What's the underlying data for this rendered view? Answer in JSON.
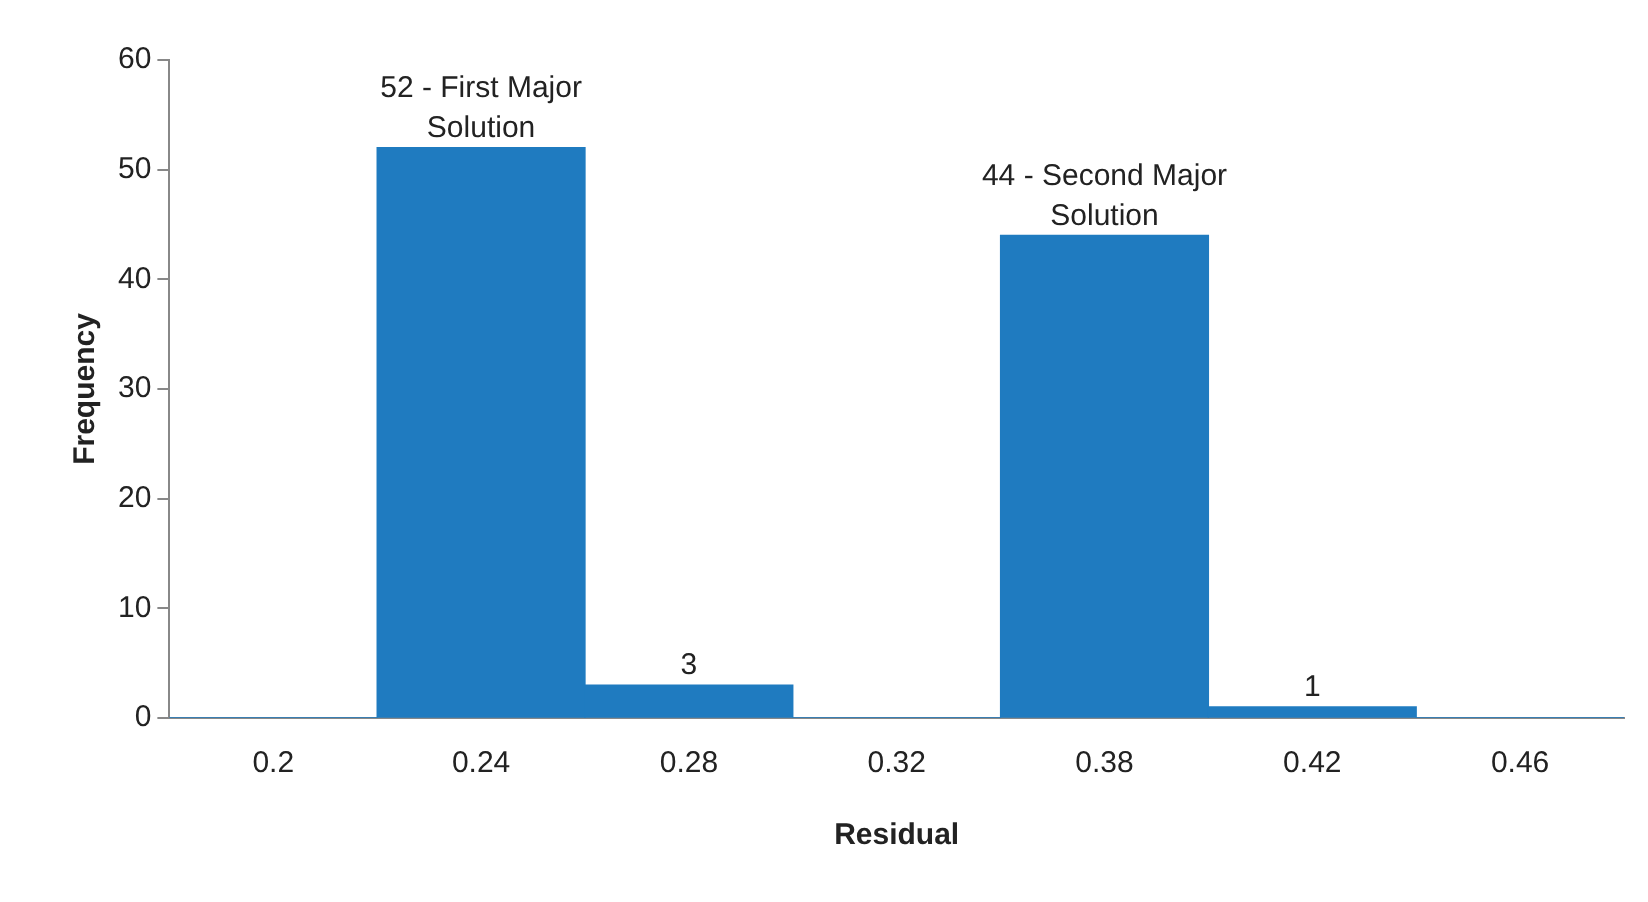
{
  "chart_data": {
    "type": "bar",
    "xlabel": "Residual",
    "ylabel": "Frequency",
    "categories": [
      "0.2",
      "0.24",
      "0.28",
      "0.32",
      "0.38",
      "0.42",
      "0.46"
    ],
    "values": [
      0,
      52,
      3,
      0,
      44,
      1,
      0
    ],
    "value_labels": [
      null,
      "52 - First Major Solution",
      "3",
      null,
      "44 - Second Major Solution",
      "1",
      null
    ],
    "color": "#1f7bc0",
    "ylim": [
      0,
      60
    ],
    "yticks": [
      0,
      10,
      20,
      30,
      40,
      50,
      60
    ],
    "grid": false,
    "legend": false
  }
}
